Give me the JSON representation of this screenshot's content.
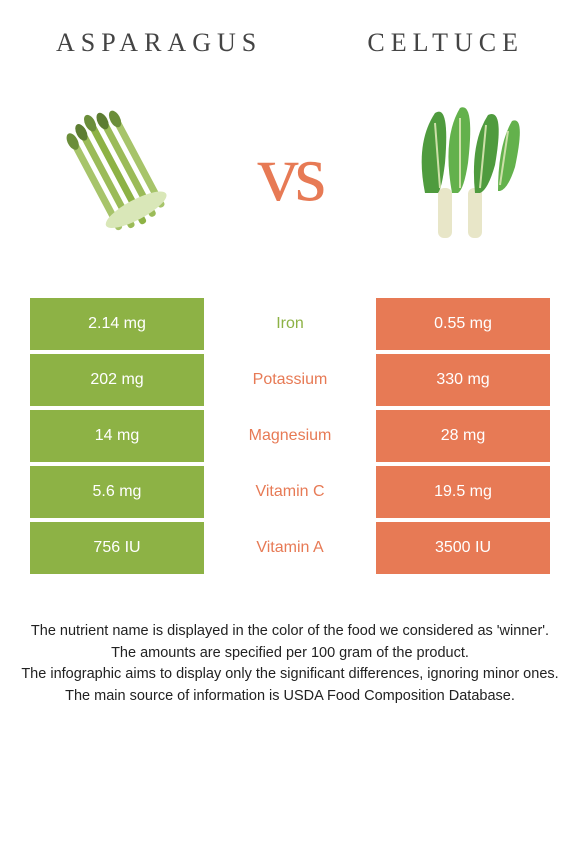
{
  "comparison": {
    "left_name": "Asparagus",
    "right_name": "Celtuce",
    "vs_text": "vs",
    "left_color": "#8db245",
    "right_color": "#e77a55",
    "background": "#ffffff",
    "title_fontsize": 26,
    "title_letterspacing": 6,
    "vs_fontsize": 82
  },
  "nutrients": [
    {
      "name": "Iron",
      "left": "2.14 mg",
      "right": "0.55 mg",
      "winner": "left"
    },
    {
      "name": "Potassium",
      "left": "202 mg",
      "right": "330 mg",
      "winner": "right"
    },
    {
      "name": "Magnesium",
      "left": "14 mg",
      "right": "28 mg",
      "winner": "right"
    },
    {
      "name": "Vitamin C",
      "left": "5.6 mg",
      "right": "19.5 mg",
      "winner": "right"
    },
    {
      "name": "Vitamin A",
      "left": "756 IU",
      "right": "3500 IU",
      "winner": "right"
    }
  ],
  "footnotes": [
    "The nutrient name is displayed in the color of the food we considered as 'winner'.",
    "The amounts are specified per 100 gram of the product.",
    "The infographic aims to display only the significant differences, ignoring minor ones.",
    "The main source of information is USDA Food Composition Database."
  ]
}
